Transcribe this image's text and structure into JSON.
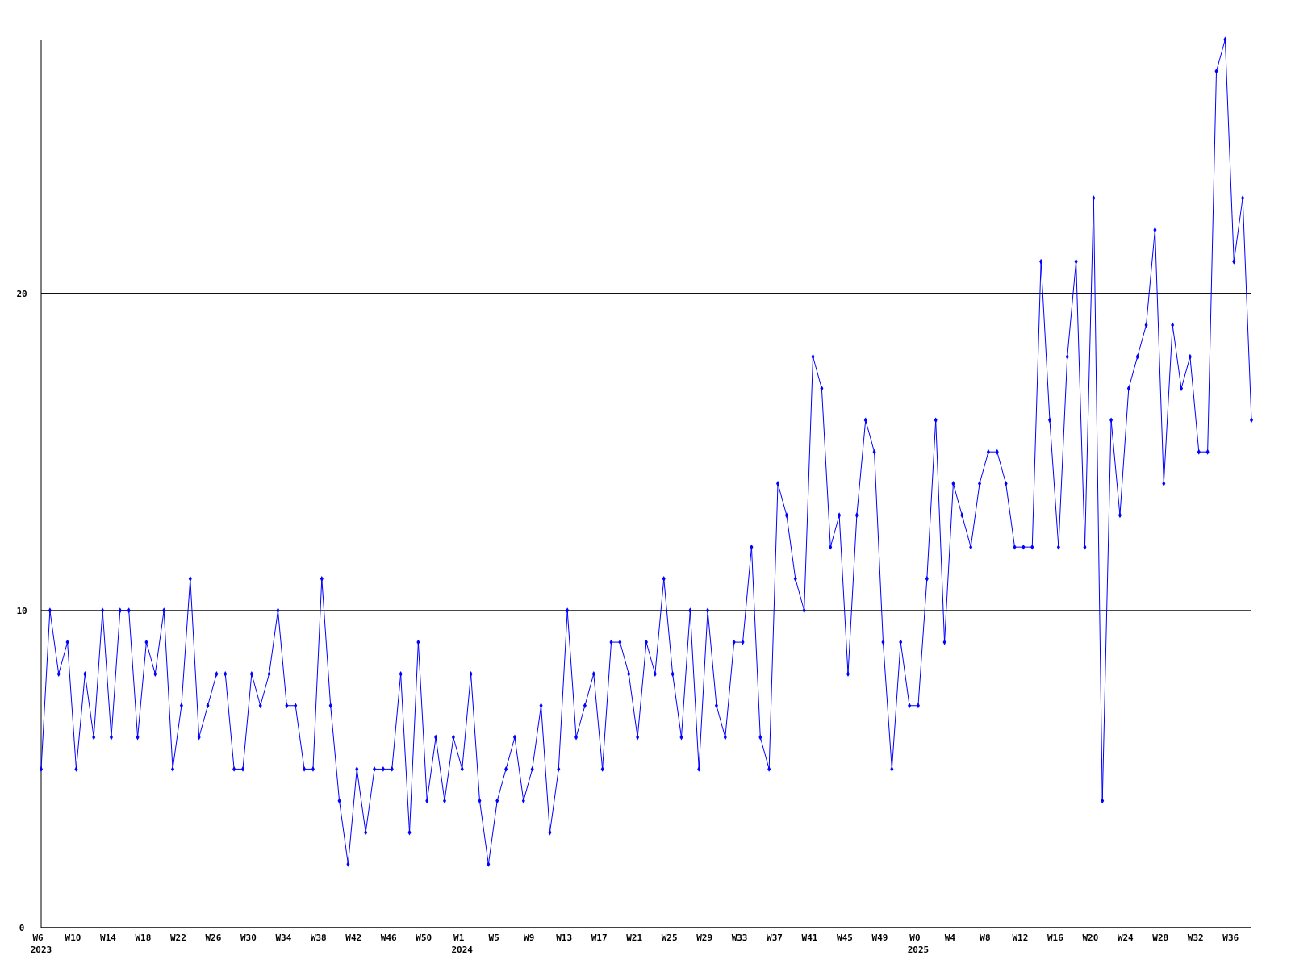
{
  "chart_data": {
    "type": "line",
    "categories": [
      "W6\n2023",
      null,
      null,
      null,
      "W10",
      null,
      null,
      null,
      "W14",
      null,
      null,
      null,
      "W18",
      null,
      null,
      null,
      "W22",
      null,
      null,
      null,
      "W26",
      null,
      null,
      null,
      "W30",
      null,
      null,
      null,
      "W34",
      null,
      null,
      null,
      "W38",
      null,
      null,
      null,
      "W42",
      null,
      null,
      null,
      "W46",
      null,
      null,
      null,
      "W50",
      null,
      null,
      null,
      "W1\n2024",
      null,
      null,
      null,
      "W5",
      null,
      null,
      null,
      "W9",
      null,
      null,
      null,
      "W13",
      null,
      null,
      null,
      "W17",
      null,
      null,
      null,
      "W21",
      null,
      null,
      null,
      "W25",
      null,
      null,
      null,
      "W29",
      null,
      null,
      null,
      "W33",
      null,
      null,
      null,
      "W37",
      null,
      null,
      null,
      "W41",
      null,
      null,
      null,
      "W45",
      null,
      null,
      null,
      "W49",
      null,
      null,
      null,
      "W0\n2025",
      null,
      null,
      null,
      "W4",
      null,
      null,
      null,
      "W8",
      null,
      null,
      null,
      "W12",
      null,
      null,
      null,
      "W16",
      null,
      null,
      null,
      "W20",
      null,
      null,
      null,
      "W24",
      null,
      null,
      null,
      "W28",
      null,
      null,
      null,
      "W32",
      null,
      null,
      null,
      "W36",
      null,
      null
    ],
    "series": [
      {
        "color": "#0000ff",
        "values": [
          5,
          10,
          8,
          9,
          5,
          8,
          6,
          10,
          6,
          10,
          10,
          6,
          9,
          8,
          10,
          5,
          7,
          11,
          6,
          7,
          8,
          8,
          5,
          5,
          8,
          7,
          8,
          10,
          7,
          7,
          5,
          5,
          11,
          7,
          4,
          2,
          5,
          3,
          5,
          5,
          5,
          8,
          3,
          9,
          4,
          6,
          4,
          6,
          5,
          8,
          4,
          2,
          4,
          5,
          6,
          4,
          5,
          7,
          3,
          5,
          10,
          6,
          7,
          8,
          5,
          9,
          9,
          8,
          6,
          9,
          8,
          11,
          8,
          6,
          10,
          5,
          10,
          7,
          6,
          9,
          9,
          12,
          6,
          5,
          14,
          13,
          11,
          10,
          18,
          17,
          12,
          13,
          8,
          13,
          16,
          15,
          9,
          5,
          9,
          7,
          7,
          11,
          16,
          9,
          14,
          13,
          12,
          14,
          15,
          15,
          14,
          12,
          12,
          12,
          21,
          16,
          12,
          18,
          21,
          12,
          23,
          4,
          16,
          13,
          17,
          18,
          19,
          22,
          14,
          19,
          17,
          18,
          15,
          15,
          27,
          28,
          21,
          23,
          16
        ]
      }
    ],
    "ylim": [
      0,
      28
    ],
    "yticks": [
      0,
      10,
      20
    ],
    "grid": "y",
    "marker": "diamond",
    "line_style": "solid"
  }
}
